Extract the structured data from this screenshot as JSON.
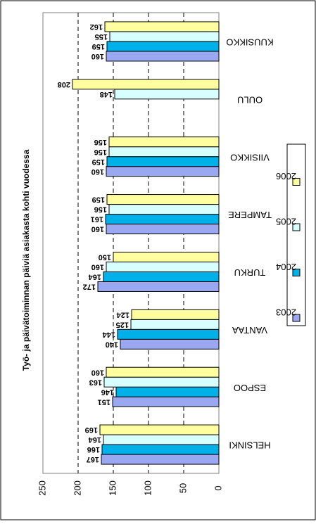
{
  "chart_data": {
    "type": "bar",
    "orientation": "horizontal",
    "title": "Työ- ja päivätoiminnan päiviä asiakasta kohti vuodessa",
    "categories": [
      "HELSINKI",
      "ESPOO",
      "VANTAA",
      "TURKU",
      "TAMPERE",
      "VIISIKKO",
      "OULU",
      "KUUSIKKO"
    ],
    "series": [
      {
        "name": "2003",
        "color": "#99A8F0",
        "values": [
          167,
          151,
          140,
          172,
          160,
          160,
          null,
          160
        ]
      },
      {
        "name": "2004",
        "color": "#00B0E8",
        "values": [
          166,
          146,
          144,
          164,
          161,
          159,
          null,
          159
        ]
      },
      {
        "name": "2005",
        "color": "#D8FFFF",
        "values": [
          164,
          163,
          125,
          160,
          156,
          156,
          148,
          155
        ]
      },
      {
        "name": "2006",
        "color": "#FFFFA0",
        "values": [
          169,
          160,
          124,
          150,
          159,
          156,
          208,
          162
        ]
      }
    ],
    "value_labels": [
      [
        "167",
        "166",
        "164",
        "169"
      ],
      [
        "151",
        "146",
        "163",
        "160"
      ],
      [
        "140",
        "144",
        "125",
        "124"
      ],
      [
        "172",
        "164",
        "160",
        "150"
      ],
      [
        "160",
        "161",
        "156",
        "159"
      ],
      [
        "160",
        "159",
        "156",
        "156"
      ],
      [
        "",
        "",
        "148",
        "208"
      ],
      [
        "160",
        "159",
        "155",
        "162"
      ]
    ],
    "xlim": [
      0,
      250
    ],
    "ticks": [
      "0",
      "50",
      "100",
      "150",
      "200",
      "250"
    ],
    "gridlines": true,
    "legend_position": "right"
  }
}
